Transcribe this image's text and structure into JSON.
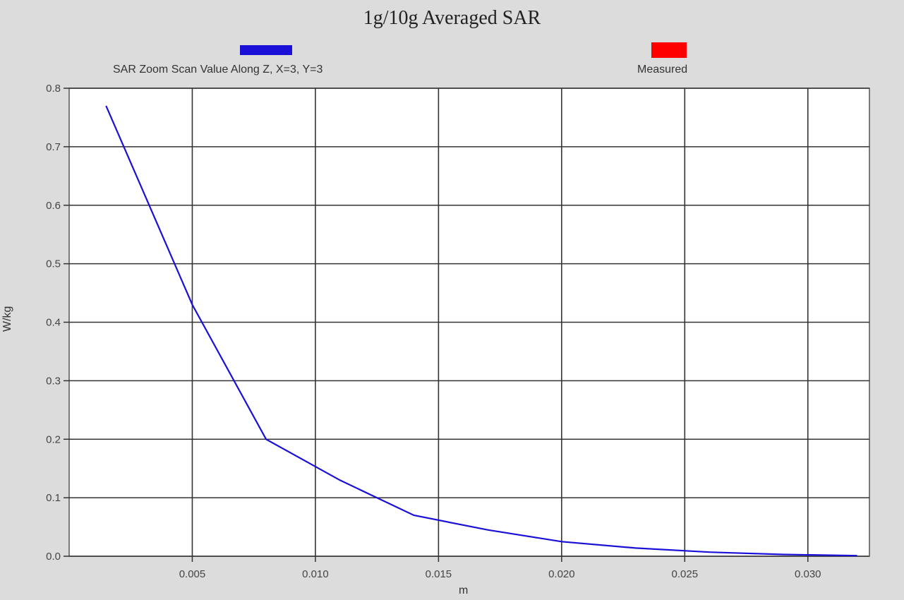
{
  "chart_data": {
    "type": "line",
    "title": "1g/10g Averaged SAR",
    "xlabel": "m",
    "ylabel": "W/kg",
    "xlim": [
      0.0,
      0.0325
    ],
    "ylim": [
      0.0,
      0.8
    ],
    "x_ticks": [
      {
        "value": 0.005,
        "label": "0.005"
      },
      {
        "value": 0.01,
        "label": "0.010"
      },
      {
        "value": 0.015,
        "label": "0.015"
      },
      {
        "value": 0.02,
        "label": "0.020"
      },
      {
        "value": 0.025,
        "label": "0.025"
      },
      {
        "value": 0.03,
        "label": "0.030"
      }
    ],
    "y_ticks": [
      {
        "value": 0.0,
        "label": "0.0"
      },
      {
        "value": 0.1,
        "label": "0.1"
      },
      {
        "value": 0.2,
        "label": "0.2"
      },
      {
        "value": 0.3,
        "label": "0.3"
      },
      {
        "value": 0.4,
        "label": "0.4"
      },
      {
        "value": 0.5,
        "label": "0.5"
      },
      {
        "value": 0.6,
        "label": "0.6"
      },
      {
        "value": 0.7,
        "label": "0.7"
      },
      {
        "value": 0.8,
        "label": "0.8"
      }
    ],
    "grid": true,
    "legend_placement": "top",
    "series": [
      {
        "name": "SAR Zoom Scan Value Along Z, X=3, Y=3",
        "color": "#1a10d8",
        "x": [
          0.0015,
          0.005,
          0.008,
          0.011,
          0.014,
          0.017,
          0.02,
          0.023,
          0.026,
          0.029,
          0.032
        ],
        "y": [
          0.77,
          0.43,
          0.2,
          0.13,
          0.07,
          0.045,
          0.025,
          0.014,
          0.007,
          0.003,
          0.001
        ]
      },
      {
        "name": "Measured",
        "color": "#ff0000",
        "x": [],
        "y": []
      }
    ]
  }
}
